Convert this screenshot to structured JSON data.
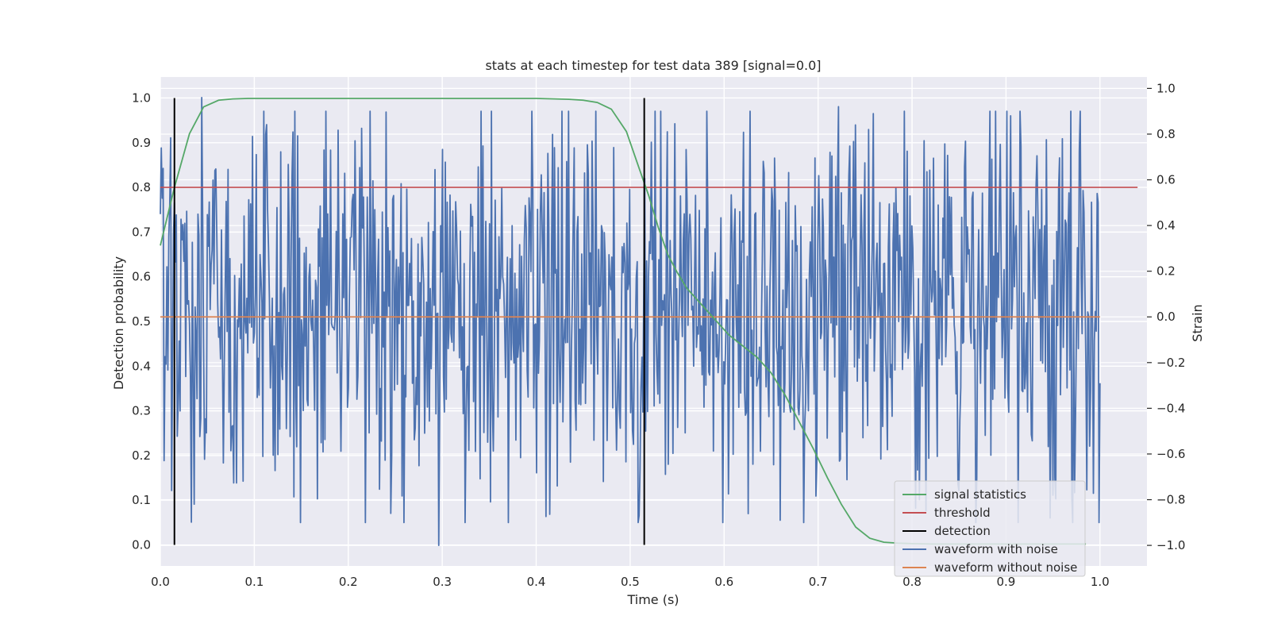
{
  "chart_data": {
    "type": "line",
    "title": "stats at each timestep for test data 389 [signal=0.0]",
    "xlabel": "Time (s)",
    "ylabel": "Detection probability",
    "ylabel_right": "Strain",
    "xlim": [
      0.0,
      1.05
    ],
    "ylim": [
      -0.047,
      1.047
    ],
    "ylim_right": [
      -1.09,
      1.05
    ],
    "xticks": [
      0.0,
      0.1,
      0.2,
      0.3,
      0.4,
      0.5,
      0.6,
      0.7,
      0.8,
      0.9,
      1.0
    ],
    "xtick_labels": [
      "0.0",
      "0.1",
      "0.2",
      "0.3",
      "0.4",
      "0.5",
      "0.6",
      "0.7",
      "0.8",
      "0.9",
      "1.0"
    ],
    "yticks": [
      0.0,
      0.1,
      0.2,
      0.3,
      0.4,
      0.5,
      0.6,
      0.7,
      0.8,
      0.9,
      1.0
    ],
    "ytick_labels": [
      "0.0",
      "0.1",
      "0.2",
      "0.3",
      "0.4",
      "0.5",
      "0.6",
      "0.7",
      "0.8",
      "0.9",
      "1.0"
    ],
    "yticks_right": [
      -1.0,
      -0.8,
      -0.6,
      -0.4,
      -0.2,
      0.0,
      0.2,
      0.4,
      0.6,
      0.8,
      1.0
    ],
    "ytick_labels_right": [
      "−1.0",
      "−0.8",
      "−0.6",
      "−0.4",
      "−0.2",
      "0.0",
      "0.2",
      "0.4",
      "0.6",
      "0.8",
      "1.0"
    ],
    "grid": true,
    "legend_position": "lower-right",
    "colors": {
      "background": "#eaeaf2",
      "grid": "#ffffff",
      "signal_statistics": "#55a868",
      "threshold": "#c44e52",
      "detection": "#000000",
      "waveform_with_noise": "#4c72b0",
      "waveform_without_noise": "#dd8452"
    },
    "series": [
      {
        "name": "signal statistics",
        "axis": "left",
        "x": [
          0.0,
          0.015,
          0.031,
          0.046,
          0.062,
          0.077,
          0.093,
          0.108,
          0.124,
          0.139,
          0.155,
          0.2,
          0.25,
          0.3,
          0.35,
          0.4,
          0.42,
          0.435,
          0.45,
          0.465,
          0.48,
          0.496,
          0.51,
          0.52,
          0.53,
          0.54,
          0.55,
          0.56,
          0.575,
          0.59,
          0.605,
          0.62,
          0.635,
          0.65,
          0.665,
          0.68,
          0.695,
          0.71,
          0.725,
          0.74,
          0.755,
          0.77,
          0.785,
          0.8,
          0.82,
          0.85,
          0.88,
          0.91,
          0.94,
          0.97,
          0.985
        ],
        "values": [
          0.67,
          0.8,
          0.92,
          0.98,
          0.995,
          0.998,
          0.999,
          0.999,
          0.999,
          0.999,
          0.999,
          0.999,
          0.999,
          0.999,
          0.999,
          0.999,
          0.998,
          0.997,
          0.995,
          0.99,
          0.975,
          0.925,
          0.84,
          0.78,
          0.71,
          0.65,
          0.61,
          0.575,
          0.54,
          0.505,
          0.47,
          0.445,
          0.42,
          0.385,
          0.335,
          0.275,
          0.215,
          0.15,
          0.09,
          0.04,
          0.015,
          0.006,
          0.004,
          0.003,
          0.002,
          0.002,
          0.002,
          0.002,
          0.002,
          0.002,
          0.002
        ]
      },
      {
        "name": "threshold",
        "axis": "left",
        "x": [
          0.0,
          1.04
        ],
        "values": [
          0.8,
          0.8
        ]
      },
      {
        "name": "detection",
        "axis": "left",
        "x": [
          0.015,
          0.515
        ],
        "values": [
          1.0,
          1.0
        ]
      },
      {
        "name": "waveform with noise",
        "axis": "right",
        "amplitude": 0.43,
        "peaks": [
          {
            "x": 0.0,
            "v": 0.45
          },
          {
            "x": 0.003,
            "v": 0.65
          },
          {
            "x": 0.036,
            "v": -0.82
          },
          {
            "x": 0.044,
            "v": 0.96
          },
          {
            "x": 0.098,
            "v": 0.79
          },
          {
            "x": 0.181,
            "v": 0.73
          },
          {
            "x": 0.245,
            "v": -0.86
          },
          {
            "x": 0.296,
            "v": -1.0
          },
          {
            "x": 0.351,
            "v": -0.81
          },
          {
            "x": 0.422,
            "v": -0.74
          },
          {
            "x": 0.44,
            "v": 0.74
          },
          {
            "x": 0.451,
            "v": 0.63
          },
          {
            "x": 0.51,
            "v": -0.87
          },
          {
            "x": 0.54,
            "v": 0.81
          },
          {
            "x": 0.66,
            "v": -0.89
          },
          {
            "x": 0.722,
            "v": 0.92
          },
          {
            "x": 0.74,
            "v": 0.84
          },
          {
            "x": 0.85,
            "v": -0.76
          },
          {
            "x": 0.905,
            "v": 0.88
          },
          {
            "x": 0.947,
            "v": -0.88
          },
          {
            "x": 0.96,
            "v": 0.78
          },
          {
            "x": 0.998,
            "v": 0.5
          }
        ]
      },
      {
        "name": "waveform without noise",
        "axis": "right",
        "x": [
          0.0,
          1.0
        ],
        "values": [
          0.0,
          0.0
        ]
      }
    ],
    "legend": [
      "signal statistics",
      "threshold",
      "detection",
      "waveform with noise",
      "waveform without noise"
    ]
  }
}
